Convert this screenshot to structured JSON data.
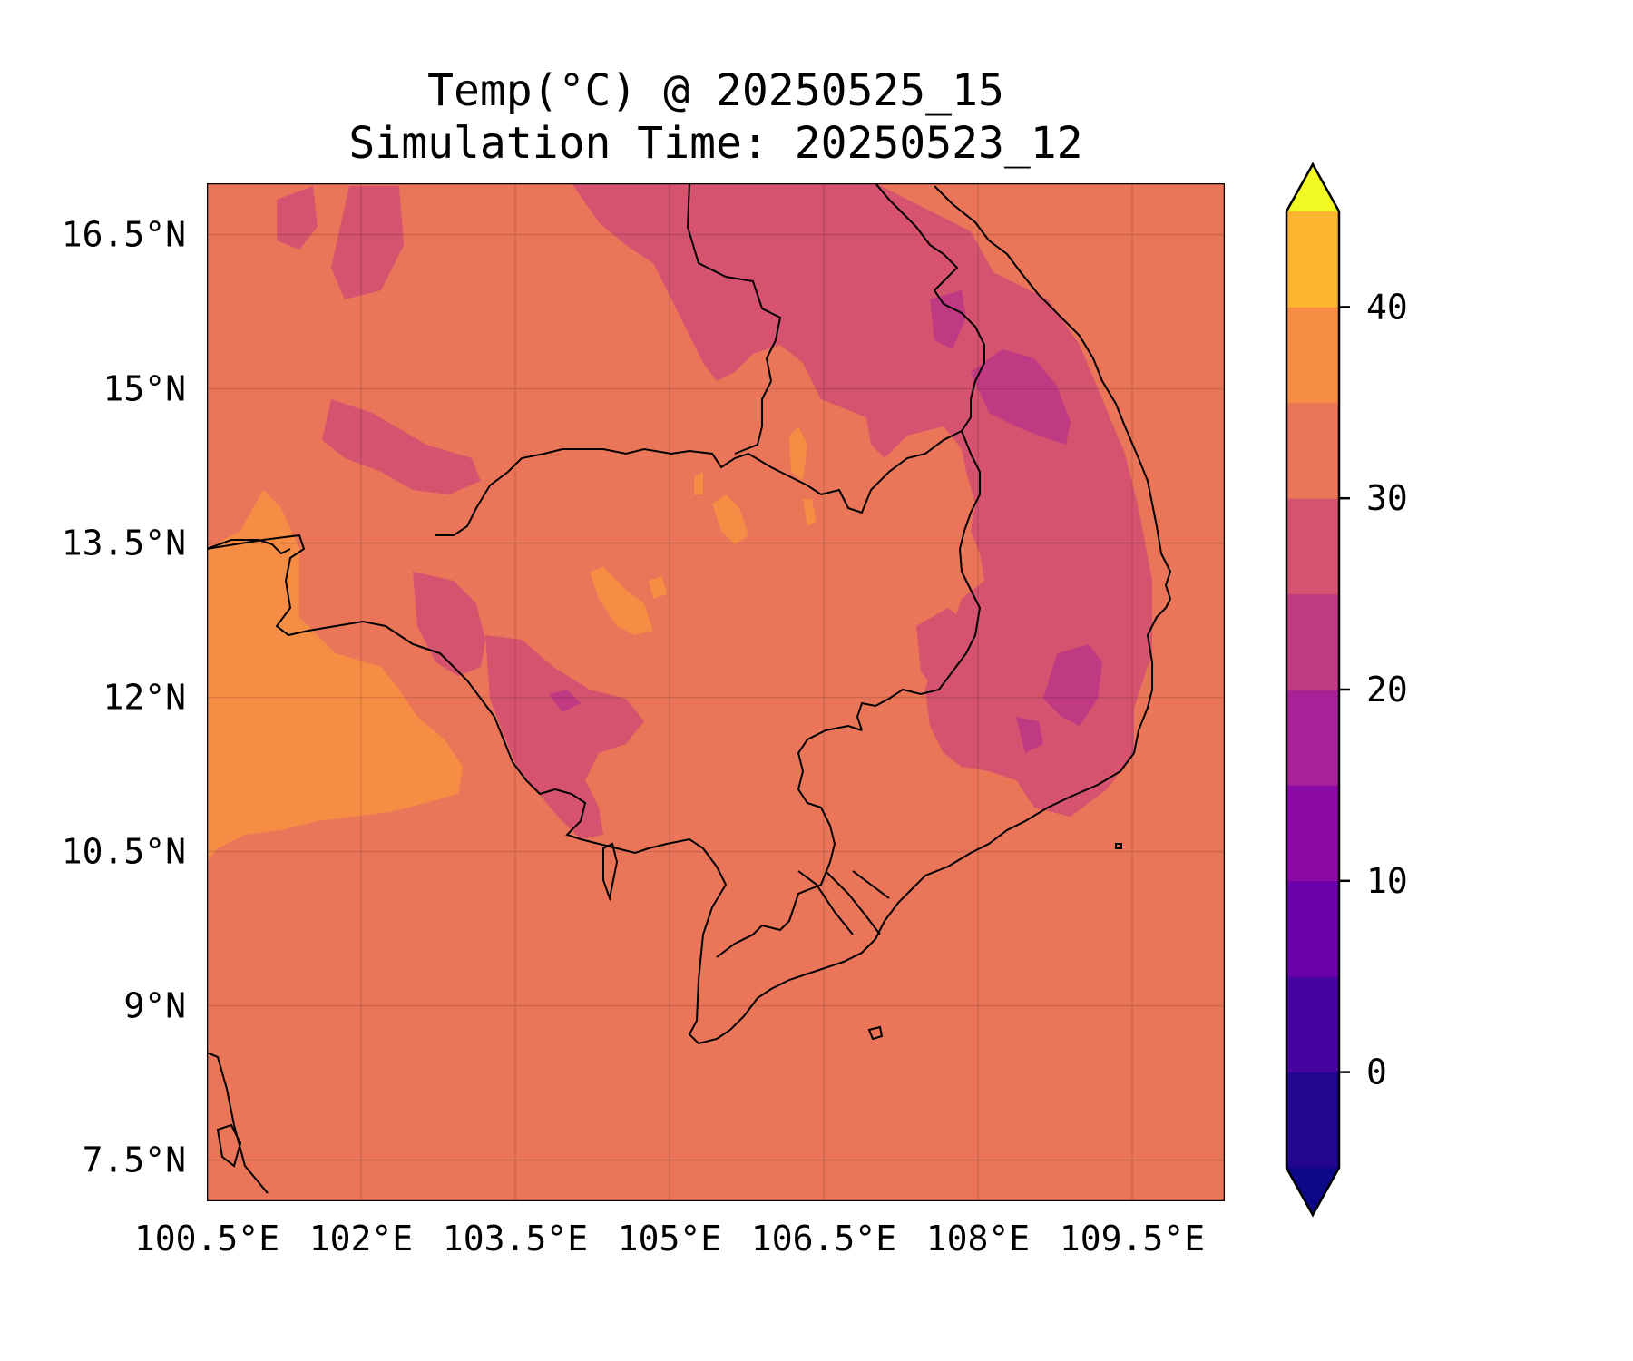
{
  "title": {
    "line1": "Temp(°C) @ 20250525_15",
    "line2": "Simulation Time: 20250523_12"
  },
  "map": {
    "lon_range": [
      100.5,
      110.4
    ],
    "lat_range": [
      7.1,
      17.0
    ],
    "lon_ticks": [
      {
        "value": 100.5,
        "label": "100.5°E"
      },
      {
        "value": 102.0,
        "label": "102°E"
      },
      {
        "value": 103.5,
        "label": "103.5°E"
      },
      {
        "value": 105.0,
        "label": "105°E"
      },
      {
        "value": 106.5,
        "label": "106.5°E"
      },
      {
        "value": 108.0,
        "label": "108°E"
      },
      {
        "value": 109.5,
        "label": "109.5°E"
      }
    ],
    "lat_ticks": [
      {
        "value": 16.5,
        "label": "16.5°N"
      },
      {
        "value": 15.0,
        "label": "15°N"
      },
      {
        "value": 13.5,
        "label": "13.5°N"
      },
      {
        "value": 12.0,
        "label": "12°N"
      },
      {
        "value": 10.5,
        "label": "10.5°N"
      },
      {
        "value": 9.0,
        "label": "9°N"
      },
      {
        "value": 7.5,
        "label": "7.5°N"
      }
    ],
    "gridlines": true,
    "background_level_color": "#ea7558"
  },
  "colorbar": {
    "levels": [
      -5,
      0,
      5,
      10,
      15,
      20,
      25,
      30,
      35,
      40,
      45
    ],
    "colors": [
      "#220690",
      "#47039f",
      "#6a00a8",
      "#8b0aa5",
      "#a72197",
      "#c03a83",
      "#d5536f",
      "#ea7558",
      "#f68d45",
      "#fdb42f",
      "#f3e028"
    ],
    "under_color": "#0d0887",
    "over_color": "#f0f921",
    "extend": "both",
    "ticks": [
      {
        "value": 0,
        "label": "0"
      },
      {
        "value": 10,
        "label": "10"
      },
      {
        "value": 20,
        "label": "20"
      },
      {
        "value": 30,
        "label": "30"
      },
      {
        "value": 40,
        "label": "40"
      }
    ]
  }
}
